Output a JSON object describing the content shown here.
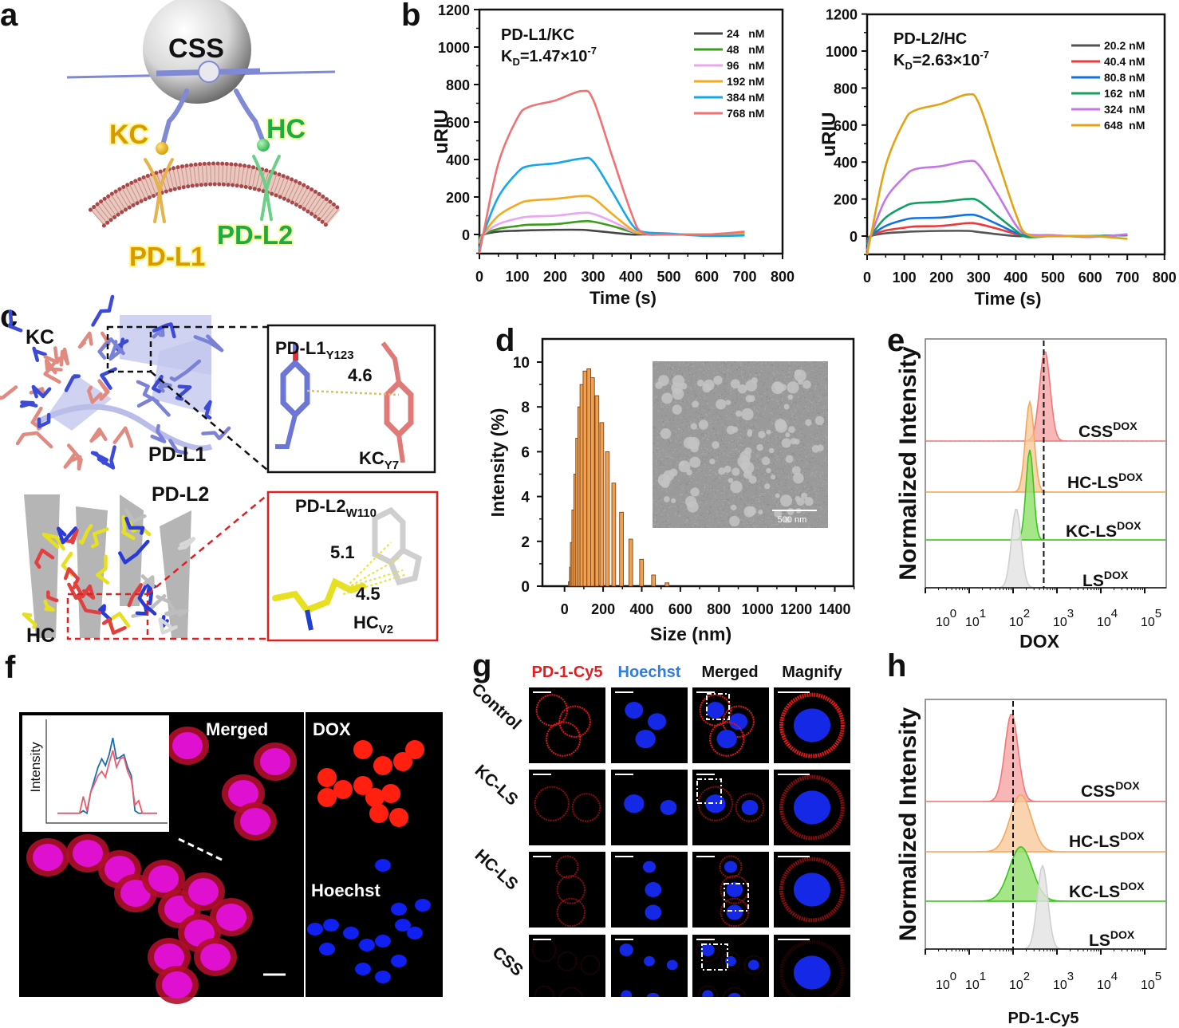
{
  "panel_labels": {
    "a": "a",
    "b": "b",
    "c": "c",
    "d": "d",
    "e": "e",
    "f": "f",
    "g": "g",
    "h": "h"
  },
  "panel_a": {
    "sphere_label": "CSS",
    "ligand_left": "KC",
    "ligand_right": "HC",
    "receptor_left": "PD-L1",
    "receptor_right": "PD-L2",
    "colors": {
      "kc": "#d99a00",
      "hc": "#1faa48",
      "linker": "#7f89d6",
      "membrane": "#a84848"
    }
  },
  "panel_c": {
    "kc": "KC",
    "pdl1": "PD-L1",
    "pdl2": "PD-L2",
    "hc": "HC",
    "inset1": {
      "res1": "PD-L1",
      "res1_sub": "Y123",
      "res2": "KC",
      "res2_sub": "Y7",
      "distance": "4.6"
    },
    "inset2": {
      "res1": "PD-L2",
      "res1_sub": "W110",
      "res2": "HC",
      "res2_sub": "V2",
      "distance_1": "5.1",
      "distance_2": "4.5"
    }
  },
  "panel_d_inset": {
    "scale_bar": "500 nm"
  },
  "panel_f": {
    "merged": "Merged",
    "dox": "DOX",
    "hoechst": "Hoechst"
  },
  "panel_g": {
    "columns": [
      {
        "label": "PD-1-Cy5",
        "color": "#e02020"
      },
      {
        "label": "Hoechst",
        "color": "#2f7de0"
      },
      {
        "label": "Merged",
        "color": "#111111"
      },
      {
        "label": "Magnify",
        "color": "#111111"
      }
    ],
    "rows": [
      "Control",
      "KC-LS",
      "HC-LS",
      "CSS"
    ]
  },
  "chart_data": [
    {
      "panel": "b-left",
      "type": "line",
      "title": "PD-L1/KC",
      "kd": {
        "k": "K",
        "sub": "D",
        "mid": "=1.47×10",
        "exp": "-7"
      },
      "xlabel": "Time (s)",
      "ylabel": "uRIU",
      "xlim": [
        0,
        800
      ],
      "ylim": [
        -100,
        1200
      ],
      "xticks": [
        "0",
        "100",
        "200",
        "300",
        "400",
        "500",
        "600",
        "700",
        "800"
      ],
      "yticks": [
        "0",
        "200",
        "400",
        "600",
        "800",
        "1000",
        "1200"
      ],
      "x": [
        0,
        10,
        50,
        100,
        130,
        200,
        270,
        300,
        350,
        400,
        430,
        500,
        600,
        700
      ],
      "series": [
        {
          "name": "24   nM",
          "color": "#454545",
          "values": [
            -20,
            0,
            15,
            20,
            22,
            25,
            25,
            20,
            10,
            0,
            0,
            0,
            0,
            0
          ]
        },
        {
          "name": "48   nM",
          "color": "#3c9c1e",
          "values": [
            -30,
            0,
            30,
            45,
            52,
            55,
            70,
            68,
            45,
            15,
            5,
            0,
            0,
            5
          ]
        },
        {
          "name": "96   nM",
          "color": "#e9a6f2",
          "values": [
            -40,
            0,
            55,
            85,
            95,
            100,
            115,
            110,
            70,
            20,
            5,
            0,
            0,
            5
          ]
        },
        {
          "name": "192 nM",
          "color": "#f2aa22",
          "values": [
            -50,
            0,
            100,
            160,
            180,
            190,
            205,
            195,
            110,
            30,
            5,
            0,
            0,
            5
          ]
        },
        {
          "name": "384 nM",
          "color": "#14a8ea",
          "values": [
            -80,
            0,
            200,
            330,
            365,
            380,
            405,
            390,
            230,
            60,
            15,
            5,
            -8,
            -5
          ]
        },
        {
          "name": "768 nM",
          "color": "#f07272",
          "values": [
            -100,
            0,
            380,
            620,
            680,
            715,
            765,
            720,
            420,
            120,
            10,
            0,
            0,
            15
          ]
        }
      ]
    },
    {
      "panel": "b-right",
      "type": "line",
      "title": "PD-L2/HC",
      "kd": {
        "k": "K",
        "sub": "D",
        "mid": "=2.63×10",
        "exp": "-7"
      },
      "xlabel": "Time (s)",
      "ylabel": "uRIU",
      "xlim": [
        0,
        800
      ],
      "ylim": [
        -100,
        1200
      ],
      "xticks": [
        "0",
        "100",
        "200",
        "300",
        "400",
        "500",
        "600",
        "700",
        "800"
      ],
      "yticks": [
        "0",
        "200",
        "400",
        "600",
        "800",
        "1000",
        "1200"
      ],
      "x": [
        0,
        10,
        50,
        100,
        130,
        200,
        270,
        300,
        350,
        400,
        430,
        500,
        600,
        700
      ],
      "series": [
        {
          "name": "20.2 nM",
          "color": "#555555",
          "values": [
            -20,
            0,
            15,
            22,
            25,
            28,
            28,
            22,
            10,
            0,
            0,
            0,
            0,
            5
          ]
        },
        {
          "name": "40.4 nM",
          "color": "#f03838",
          "values": [
            -30,
            0,
            30,
            45,
            52,
            55,
            70,
            65,
            40,
            12,
            5,
            0,
            0,
            5
          ]
        },
        {
          "name": "80.8 nM",
          "color": "#1272e2",
          "values": [
            -40,
            0,
            55,
            88,
            97,
            100,
            115,
            108,
            65,
            18,
            5,
            0,
            0,
            5
          ]
        },
        {
          "name": "162  nM",
          "color": "#12a062",
          "values": [
            -50,
            0,
            100,
            160,
            178,
            185,
            200,
            190,
            110,
            30,
            -5,
            0,
            0,
            5
          ]
        },
        {
          "name": "324  nM",
          "color": "#c476ea",
          "values": [
            -80,
            0,
            200,
            320,
            362,
            378,
            405,
            385,
            230,
            60,
            10,
            5,
            -5,
            10
          ]
        },
        {
          "name": "648  nM",
          "color": "#e2a414",
          "values": [
            -100,
            0,
            380,
            620,
            680,
            715,
            765,
            720,
            420,
            120,
            10,
            0,
            0,
            -15
          ]
        }
      ]
    },
    {
      "panel": "d",
      "type": "bar",
      "xlabel": "Size (nm)",
      "ylabel": "Intensity (%)",
      "xlim": [
        -100,
        1500
      ],
      "ylim": [
        0,
        11
      ],
      "xticks": [
        "0",
        "200",
        "400",
        "600",
        "800",
        "1000",
        "1200",
        "1400"
      ],
      "yticks": [
        "0",
        "2",
        "4",
        "6",
        "8",
        "10"
      ],
      "color": "#f0a050",
      "x": [
        30,
        36,
        40,
        48,
        58,
        68,
        79,
        90,
        106,
        126,
        145,
        168,
        193,
        222,
        255,
        295,
        343,
        399,
        461,
        531
      ],
      "values": [
        0.2,
        0.85,
        1.95,
        3.4,
        5.0,
        6.6,
        8.0,
        9.0,
        9.6,
        9.7,
        9.3,
        8.5,
        7.3,
        6.0,
        4.6,
        3.3,
        2.1,
        1.2,
        0.5,
        0.15
      ]
    },
    {
      "panel": "e",
      "type": "area",
      "xlabel": "DOX",
      "ylabel": "Normalized Intensity",
      "xscale": "log",
      "xtick_base": "10",
      "xtick_exponents": [
        "0",
        "1",
        "2",
        "3",
        "4",
        "5"
      ],
      "reference_line": 500,
      "series": [
        {
          "name": "CSS",
          "sup": "DOX",
          "color": "#f07878",
          "fill": "#f7a4a4",
          "peak": 530,
          "width_decades": 0.12,
          "relative_height": 1.0
        },
        {
          "name": "HC-LS",
          "sup": "DOX",
          "color": "#f4a85c",
          "fill": "#f8c99a",
          "peak": 240,
          "width_decades": 0.1,
          "relative_height": 1.0
        },
        {
          "name": "KC-LS",
          "sup": "DOX",
          "color": "#3cc41c",
          "fill": "#8ee06c",
          "peak": 240,
          "width_decades": 0.085,
          "relative_height": 1.0
        },
        {
          "name": "LS",
          "sup": "DOX",
          "color": "#cfcfcf",
          "fill": "#e2e2e2",
          "peak": 118,
          "width_decades": 0.11,
          "relative_height": 0.88
        }
      ]
    },
    {
      "panel": "h",
      "type": "area",
      "xlabel": "PD-1-Cy5",
      "ylabel": "Normalized Intensity",
      "xscale": "log",
      "xtick_base": "10",
      "xtick_exponents": [
        "0",
        "1",
        "2",
        "3",
        "4",
        "5"
      ],
      "reference_line": 100,
      "series": [
        {
          "name": "CSS",
          "sup": "DOX",
          "color": "#f07878",
          "fill": "#f7a4a4",
          "peak": 92,
          "width_decades": 0.15,
          "relative_height": 1.0
        },
        {
          "name": "HC-LS",
          "sup": "DOX",
          "color": "#f4a85c",
          "fill": "#f8c99a",
          "peak": 150,
          "width_decades": 0.24,
          "relative_height": 0.65
        },
        {
          "name": "KC-LS",
          "sup": "DOX",
          "color": "#3cc41c",
          "fill": "#8ee06c",
          "peak": 150,
          "width_decades": 0.26,
          "relative_height": 0.62
        },
        {
          "name": "LS",
          "sup": "DOX",
          "color": "#cfcfcf",
          "fill": "#e2e2e2",
          "peak": 470,
          "width_decades": 0.12,
          "relative_height": 0.95
        }
      ]
    },
    {
      "panel": "f-inset",
      "type": "line",
      "ylabel": "Intensity",
      "series": [
        {
          "color": "#1a6fb0",
          "values": [
            0.05,
            0.05,
            0.05,
            0.05,
            0.05,
            0.05,
            0.05,
            0.08,
            0.05,
            0.3,
            0.45,
            0.6,
            0.7,
            0.62,
            0.75,
            0.95,
            0.7,
            0.72,
            0.75,
            0.6,
            0.5,
            0.08,
            0.05,
            0.05,
            0.05,
            0.05,
            0.05,
            0.05
          ]
        },
        {
          "color": "#f05a6a",
          "values": [
            0.05,
            0.05,
            0.05,
            0.05,
            0.05,
            0.05,
            0.05,
            0.25,
            0.08,
            0.3,
            0.4,
            0.5,
            0.55,
            0.48,
            0.65,
            0.8,
            0.6,
            0.7,
            0.72,
            0.55,
            0.45,
            0.15,
            0.2,
            0.05,
            0.05,
            0.05,
            0.05,
            0.05
          ]
        }
      ]
    }
  ]
}
